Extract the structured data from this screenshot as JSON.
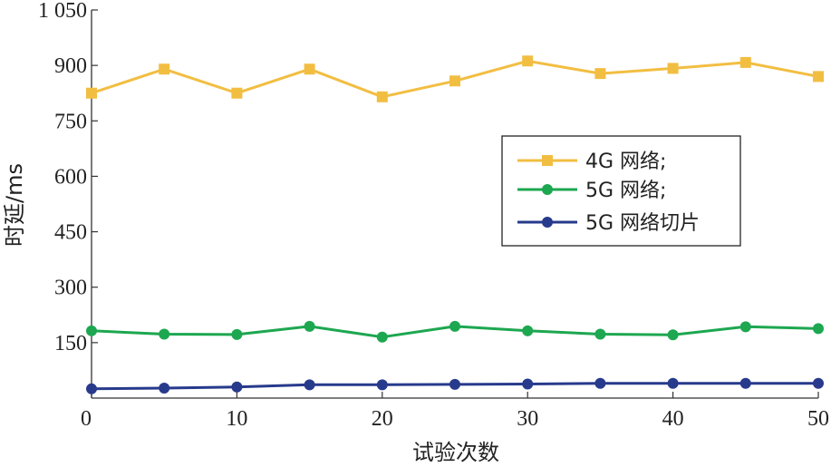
{
  "chart_data": {
    "type": "line",
    "title": "",
    "xlabel": "试验次数",
    "ylabel": "时延/ms",
    "xlim": [
      0,
      50
    ],
    "ylim": [
      0,
      1050
    ],
    "x_ticks": [
      0,
      10,
      20,
      30,
      40,
      50
    ],
    "x_tick_labels": [
      "0",
      "10",
      "20",
      "30",
      "40",
      "50"
    ],
    "y_ticks": [
      150,
      300,
      450,
      600,
      750,
      900,
      1050
    ],
    "y_tick_labels": [
      "150",
      "300",
      "450",
      "600",
      "750",
      "900",
      "1 050"
    ],
    "grid": false,
    "legend_position": "right",
    "x": [
      0,
      5,
      10,
      15,
      20,
      25,
      30,
      35,
      40,
      45,
      50
    ],
    "series": [
      {
        "name": "4G 网络;",
        "color": "#F2BE42",
        "marker": "square",
        "values": [
          825,
          890,
          825,
          890,
          815,
          858,
          912,
          878,
          892,
          908,
          870
        ]
      },
      {
        "name": "5G 网络;",
        "color": "#1DA750",
        "marker": "circle",
        "values": [
          182,
          173,
          172,
          194,
          165,
          194,
          182,
          173,
          171,
          193,
          188
        ]
      },
      {
        "name": "5G 网络切片",
        "color": "#273A8C",
        "marker": "circle",
        "values": [
          25,
          27,
          30,
          36,
          36,
          37,
          38,
          40,
          40,
          40,
          40
        ]
      }
    ]
  }
}
